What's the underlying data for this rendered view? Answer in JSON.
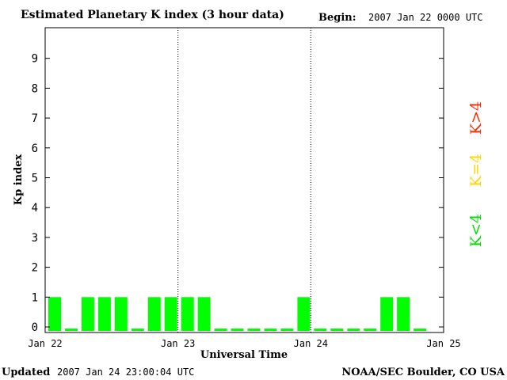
{
  "header": {
    "title": "Estimated Planetary K index (3 hour data)",
    "begin_label": "Begin:",
    "begin_value": "2007 Jan 22 0000 UTC"
  },
  "footer": {
    "updated_label": "Updated",
    "updated_value": "2007 Jan 24 23:00:04 UTC",
    "source": "NOAA/SEC Boulder, CO USA"
  },
  "legend": {
    "high": "K>4",
    "mid": "K=4",
    "low": "K<4"
  },
  "colors": {
    "low": "#00ff00",
    "mid": "#ffd700",
    "high": "#ff2a00",
    "axis": "#000000"
  },
  "chart_data": {
    "type": "bar",
    "ylabel": "Kp index",
    "xlabel": "Universal Time",
    "ylim": [
      0,
      9
    ],
    "yticks": [
      "0",
      "1",
      "2",
      "3",
      "4",
      "5",
      "6",
      "7",
      "8",
      "9"
    ],
    "xticks": [
      "Jan 22",
      "Jan 23",
      "Jan 24",
      "Jan 25"
    ],
    "interval_hours": 3,
    "values": [
      1,
      0,
      1,
      1,
      1,
      0,
      1,
      1,
      1,
      1,
      0,
      0,
      0,
      0,
      0,
      1,
      0,
      0,
      0,
      0,
      1,
      1,
      0
    ]
  }
}
